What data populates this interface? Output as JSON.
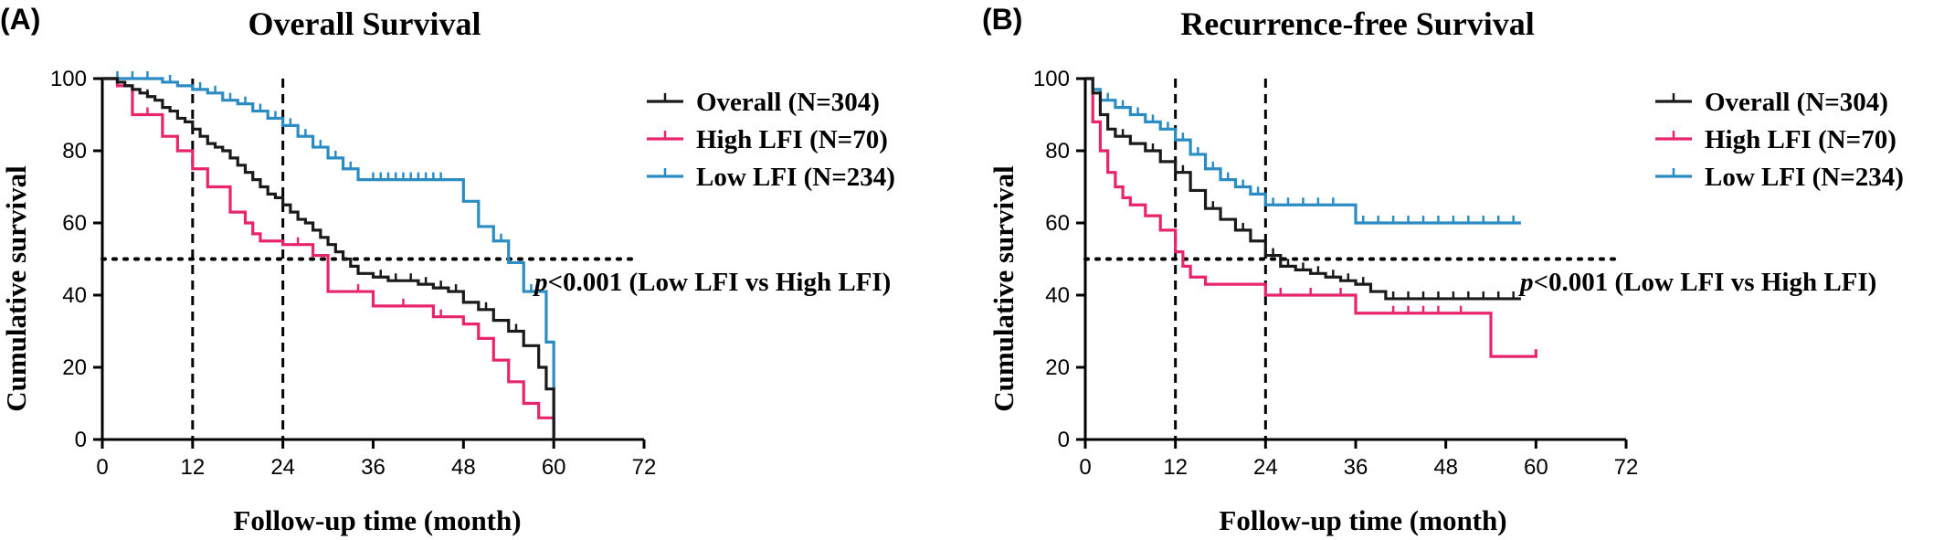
{
  "colors": {
    "overall": "#1a1a1a",
    "high": "#e8256b",
    "low": "#2b8cc4",
    "axis": "#000000"
  },
  "chart_data": [
    {
      "panel": "(A)",
      "type": "line",
      "title": "Overall Survival",
      "xlabel": "Follow-up time (month)",
      "ylabel": "Cumulative survival",
      "xlim": [
        0,
        72
      ],
      "ylim": [
        0,
        100
      ],
      "xticks": [
        "0",
        "12",
        "24",
        "36",
        "48",
        "60",
        "72"
      ],
      "yticks": [
        "0",
        "20",
        "40",
        "60",
        "80",
        "100"
      ],
      "reference_lines": {
        "vertical_x": [
          12,
          24
        ],
        "horizontal_y": 50
      },
      "legend": {
        "placement": "right",
        "entries": [
          "Overall (N=304)",
          "High LFI (N=70)",
          "Low LFI (N=234)"
        ]
      },
      "pvalue": {
        "p": "p",
        "rest": "<0.001 (Low LFI vs High LFI)"
      },
      "series": [
        {
          "name": "Overall (N=304)",
          "color_key": "overall",
          "x": [
            0,
            2,
            3,
            4,
            5,
            6,
            7,
            8,
            9,
            10,
            11,
            12,
            13,
            14,
            15,
            16,
            17,
            18,
            19,
            20,
            21,
            22,
            23,
            24,
            25,
            26,
            27,
            28,
            29,
            30,
            31,
            32,
            33,
            34,
            36,
            38,
            40,
            42,
            44,
            46,
            48,
            50,
            52,
            54,
            56,
            58,
            59,
            60
          ],
          "y": [
            100,
            99,
            98,
            97,
            96,
            95,
            94,
            92,
            91,
            89,
            88,
            86,
            84,
            82,
            81,
            80,
            78,
            76,
            74,
            72,
            70,
            68,
            67,
            65,
            63,
            61,
            60,
            58,
            56,
            54,
            52,
            50,
            48,
            46,
            45,
            44,
            44,
            43,
            42,
            41,
            38,
            36,
            33,
            30,
            26,
            20,
            14,
            0
          ],
          "censor_x": [
            6,
            10,
            14,
            18,
            22,
            26,
            30,
            34,
            37,
            39,
            41,
            43,
            45,
            47,
            51,
            55
          ]
        },
        {
          "name": "High LFI (N=70)",
          "color_key": "high",
          "x": [
            0,
            2,
            4,
            8,
            10,
            12,
            14,
            17,
            19,
            20,
            21,
            24,
            28,
            30,
            36,
            44,
            48,
            50,
            52,
            54,
            56,
            58,
            60
          ],
          "y": [
            100,
            98,
            90,
            84,
            80,
            75,
            70,
            63,
            60,
            57,
            55,
            54,
            51,
            41,
            37,
            34,
            32,
            28,
            22,
            16,
            10,
            6,
            0
          ],
          "censor_x": [
            6,
            26,
            34,
            40,
            45
          ]
        },
        {
          "name": "Low LFI (N=234)",
          "color_key": "low",
          "x": [
            0,
            5,
            8,
            10,
            12,
            14,
            16,
            18,
            20,
            22,
            24,
            26,
            28,
            30,
            32,
            34,
            46,
            48,
            50,
            52,
            54,
            56,
            58,
            59,
            60
          ],
          "y": [
            100,
            100,
            99,
            98,
            97,
            96,
            94,
            93,
            91,
            89,
            87,
            84,
            81,
            78,
            75,
            72,
            72,
            66,
            59,
            55,
            49,
            41,
            41,
            27,
            0
          ],
          "censor_x": [
            2,
            4,
            6,
            9,
            13,
            15,
            17,
            19,
            21,
            23,
            25,
            27,
            29,
            31,
            33,
            36,
            37,
            38,
            39,
            40,
            41,
            42,
            43,
            44,
            45,
            53,
            57
          ]
        }
      ]
    },
    {
      "panel": "(B)",
      "type": "line",
      "title": "Recurrence-free Survival",
      "xlabel": "Follow-up time (month)",
      "ylabel": "Cumulative survival",
      "xlim": [
        0,
        72
      ],
      "ylim": [
        0,
        100
      ],
      "xticks": [
        "0",
        "12",
        "24",
        "36",
        "48",
        "60",
        "72"
      ],
      "yticks": [
        "0",
        "20",
        "40",
        "60",
        "80",
        "100"
      ],
      "reference_lines": {
        "vertical_x": [
          12,
          24
        ],
        "horizontal_y": 50
      },
      "legend": {
        "placement": "right",
        "entries": [
          "Overall (N=304)",
          "High LFI (N=70)",
          "Low LFI (N=234)"
        ]
      },
      "pvalue": {
        "p": "p",
        "rest": "<0.001 (Low LFI vs High LFI)"
      },
      "series": [
        {
          "name": "Overall (N=304)",
          "color_key": "overall",
          "x": [
            0,
            1,
            2,
            3,
            4,
            6,
            8,
            10,
            12,
            14,
            16,
            18,
            20,
            22,
            24,
            26,
            28,
            30,
            32,
            34,
            36,
            38,
            40,
            58
          ],
          "y": [
            100,
            96,
            90,
            86,
            84,
            82,
            80,
            77,
            74,
            69,
            64,
            61,
            58,
            55,
            51,
            48,
            47,
            46,
            45,
            44,
            43,
            41,
            39,
            39
          ],
          "censor_x": [
            5,
            9,
            13,
            17,
            21,
            25,
            27,
            29,
            31,
            33,
            35,
            37,
            41,
            43,
            45,
            47,
            49,
            51,
            53,
            55,
            57
          ]
        },
        {
          "name": "High LFI (N=70)",
          "color_key": "high",
          "x": [
            0,
            1,
            2,
            3,
            4,
            5,
            6,
            8,
            10,
            12,
            13,
            14,
            16,
            20,
            24,
            36,
            40,
            54,
            56,
            60
          ],
          "y": [
            100,
            88,
            80,
            74,
            70,
            67,
            65,
            62,
            58,
            52,
            48,
            45,
            43,
            43,
            40,
            35,
            35,
            23,
            23,
            25
          ],
          "censor_x": [
            26,
            30,
            34,
            41,
            43,
            45,
            47,
            50
          ]
        },
        {
          "name": "Low LFI (N=234)",
          "color_key": "low",
          "x": [
            0,
            1,
            2,
            4,
            6,
            8,
            10,
            12,
            14,
            16,
            18,
            20,
            22,
            24,
            30,
            34,
            36,
            58
          ],
          "y": [
            100,
            97,
            94,
            92,
            90,
            88,
            86,
            83,
            79,
            75,
            72,
            70,
            68,
            65,
            65,
            65,
            60,
            60
          ],
          "censor_x": [
            3,
            5,
            7,
            9,
            11,
            13,
            15,
            17,
            19,
            21,
            23,
            25,
            27,
            29,
            31,
            33,
            37,
            39,
            41,
            43,
            45,
            47,
            49,
            51,
            53,
            55,
            57
          ]
        }
      ]
    }
  ]
}
